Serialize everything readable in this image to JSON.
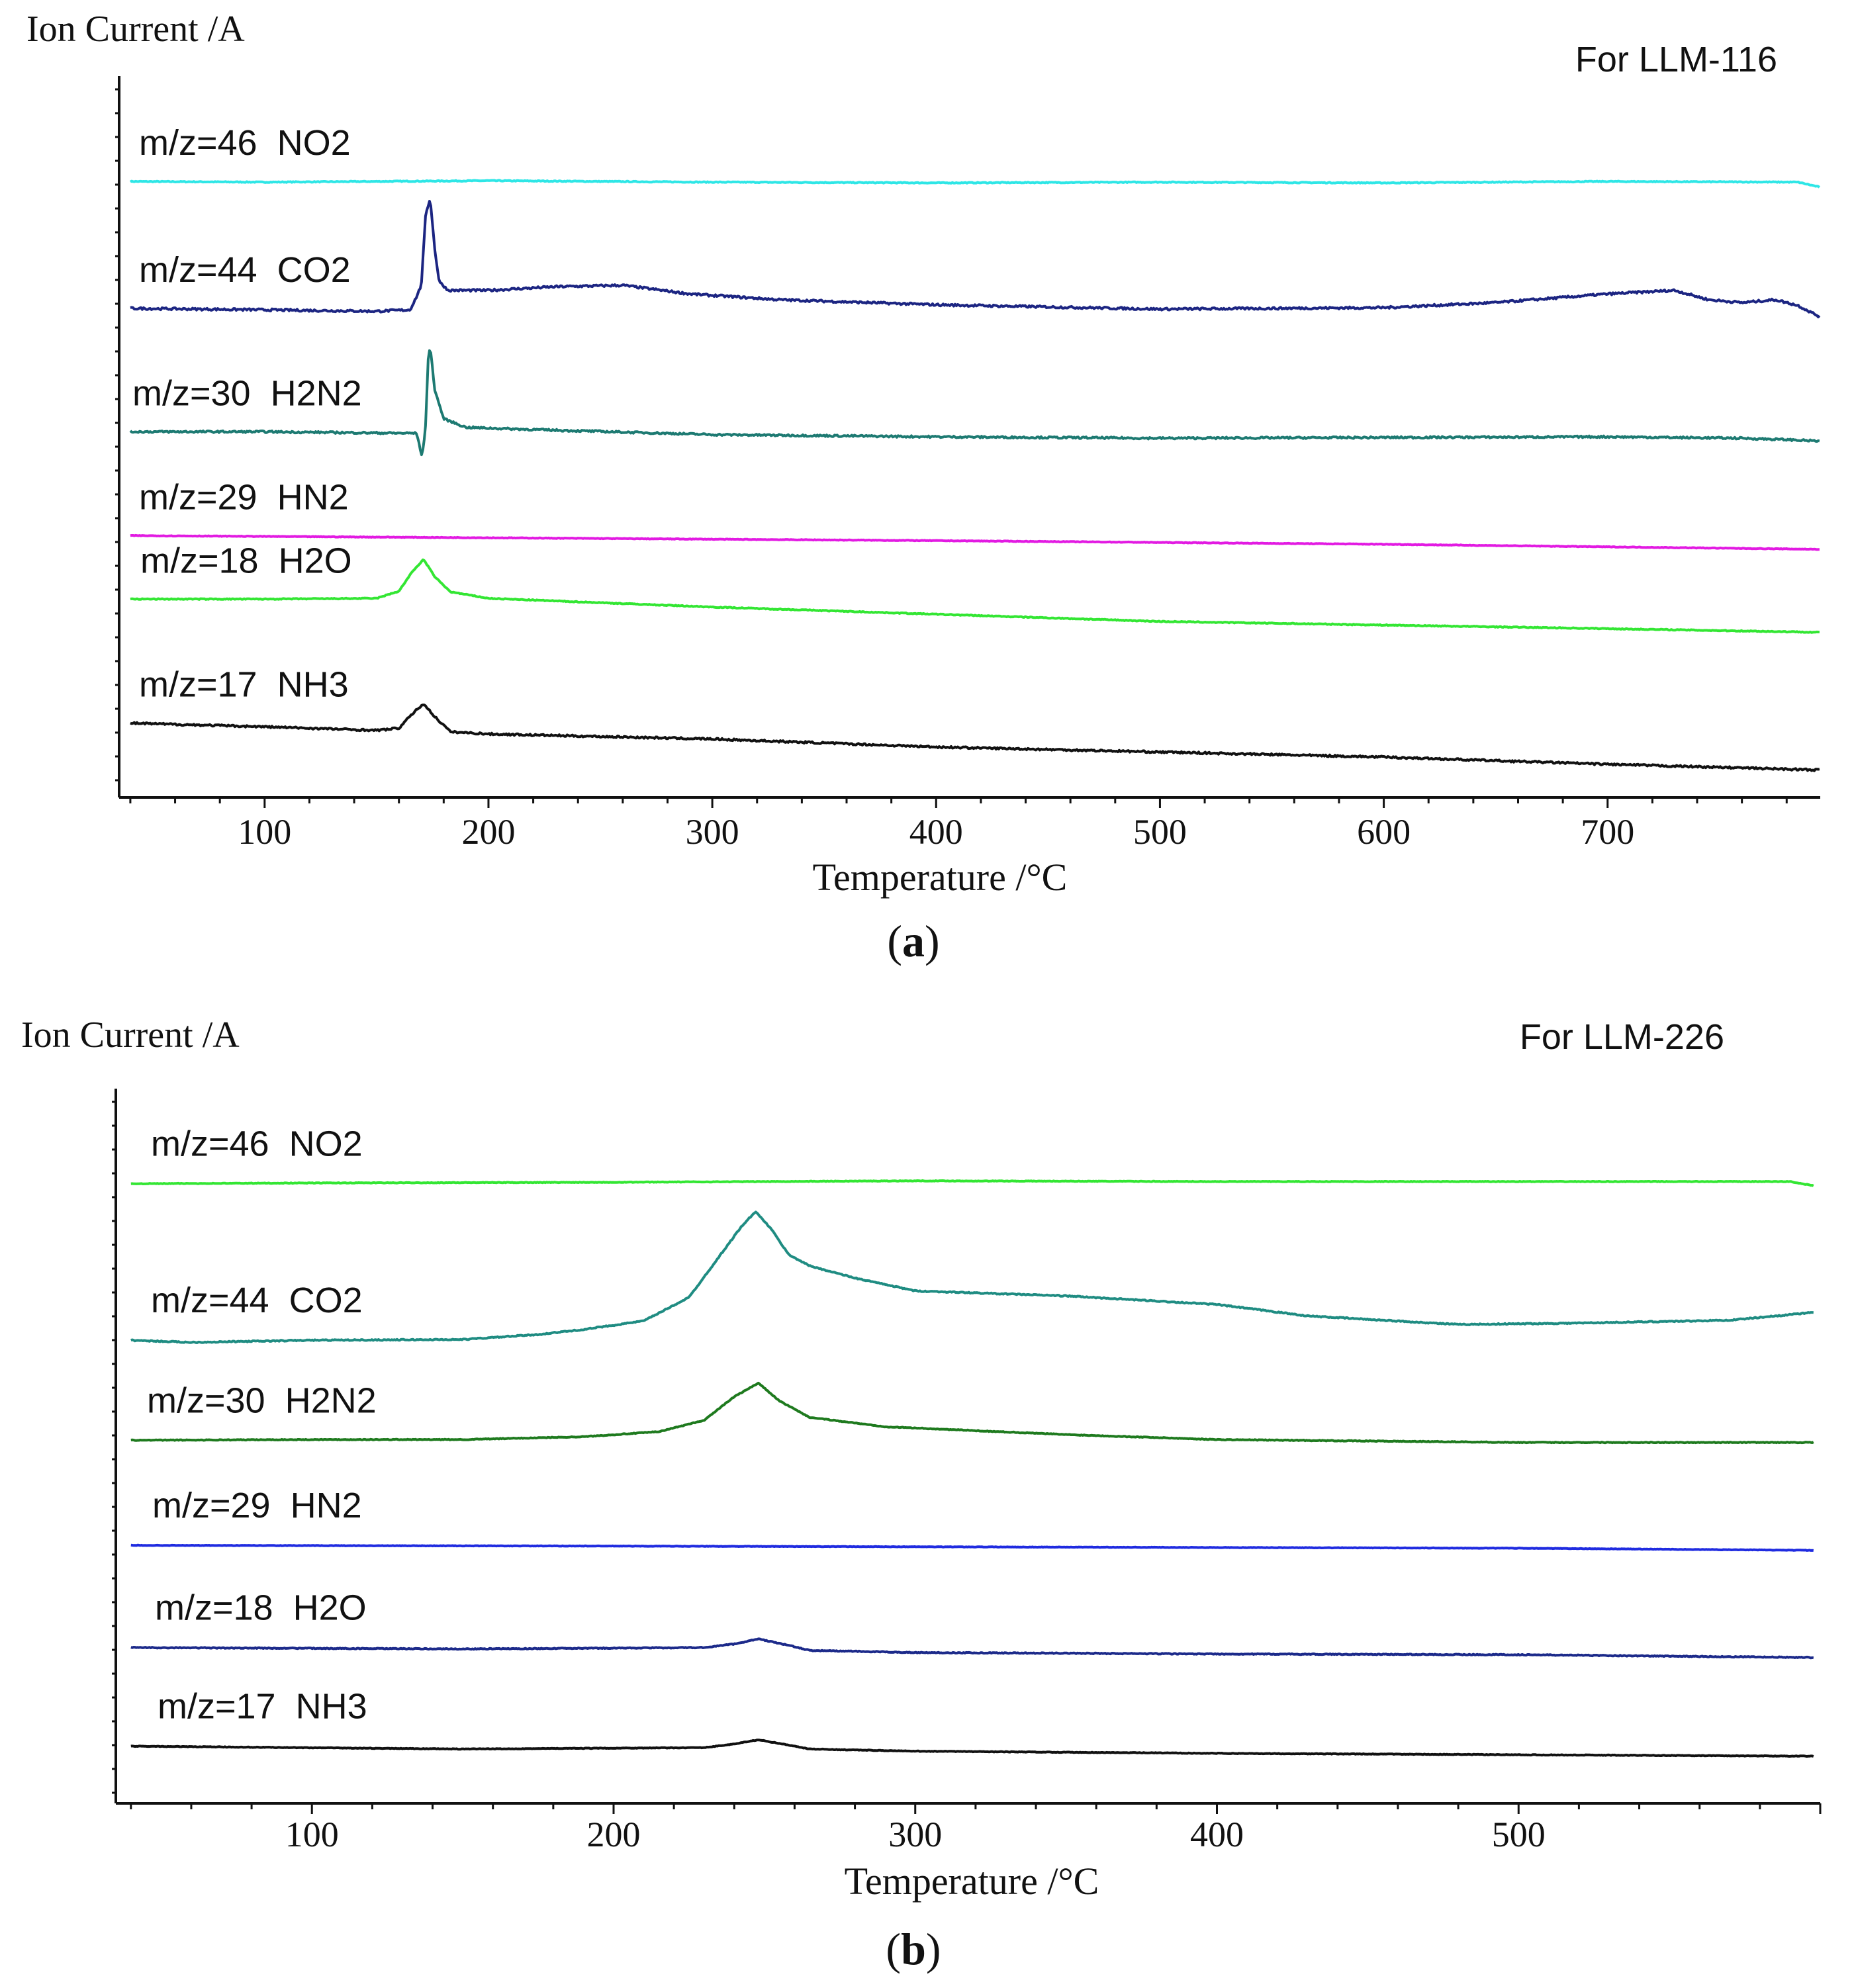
{
  "chart_data": [
    {
      "type": "line",
      "panel_label_open": "(",
      "panel_label": "a",
      "panel_label_close": ")",
      "ylabel": "Ion Current /A",
      "xlabel": "Temperature /°C",
      "title": "For LLM-116",
      "xlim": [
        35,
        795
      ],
      "ylim": [
        0,
        100
      ],
      "xticks": [
        100,
        200,
        300,
        400,
        500,
        600,
        700
      ],
      "series": [
        {
          "name": "m/z=46  NO2",
          "color": "#2ee6e6",
          "noise": 0.12,
          "points": [
            [
              40,
              85.4
            ],
            [
              100,
              85.3
            ],
            [
              200,
              85.5
            ],
            [
              300,
              85.3
            ],
            [
              400,
              85.2
            ],
            [
              500,
              85.3
            ],
            [
              600,
              85.2
            ],
            [
              700,
              85.4
            ],
            [
              785,
              85.3
            ],
            [
              795,
              84.6
            ]
          ]
        },
        {
          "name": "m/z=44  CO2",
          "color": "#1c2582",
          "noise": 0.3,
          "points": [
            [
              40,
              67.8
            ],
            [
              100,
              67.6
            ],
            [
              150,
              67.4
            ],
            [
              165,
              67.6
            ],
            [
              168,
              69.5
            ],
            [
              170,
              71.0
            ],
            [
              172,
              81.0
            ],
            [
              174,
              83.0
            ],
            [
              176,
              76.0
            ],
            [
              178,
              71.5
            ],
            [
              182,
              70.3
            ],
            [
              200,
              70.3
            ],
            [
              230,
              70.8
            ],
            [
              260,
              71.0
            ],
            [
              290,
              69.8
            ],
            [
              330,
              69.0
            ],
            [
              400,
              68.3
            ],
            [
              500,
              67.7
            ],
            [
              600,
              67.9
            ],
            [
              650,
              68.6
            ],
            [
              700,
              69.8
            ],
            [
              730,
              70.3
            ],
            [
              745,
              69.0
            ],
            [
              760,
              68.6
            ],
            [
              775,
              69.0
            ],
            [
              785,
              68.2
            ],
            [
              795,
              66.6
            ]
          ]
        },
        {
          "name": "m/z=30  H2N2",
          "color": "#1d7a72",
          "noise": 0.25,
          "points": [
            [
              40,
              50.7
            ],
            [
              100,
              50.7
            ],
            [
              160,
              50.5
            ],
            [
              168,
              50.5
            ],
            [
              170,
              47.5
            ],
            [
              171,
              48.5
            ],
            [
              172,
              52.0
            ],
            [
              173,
              60.5
            ],
            [
              174,
              62.5
            ],
            [
              176,
              56.5
            ],
            [
              180,
              52.5
            ],
            [
              190,
              51.3
            ],
            [
              220,
              51.0
            ],
            [
              300,
              50.3
            ],
            [
              400,
              50.0
            ],
            [
              500,
              49.8
            ],
            [
              600,
              49.9
            ],
            [
              700,
              50.0
            ],
            [
              760,
              49.8
            ],
            [
              780,
              49.6
            ],
            [
              795,
              49.4
            ]
          ]
        },
        {
          "name": "m/z=29  HN2",
          "color": "#e21ae2",
          "noise": 0.08,
          "points": [
            [
              40,
              36.3
            ],
            [
              200,
              36.0
            ],
            [
              400,
              35.6
            ],
            [
              600,
              35.1
            ],
            [
              795,
              34.4
            ]
          ]
        },
        {
          "name": "m/z=18  H2O",
          "color": "#33e633",
          "noise": 0.12,
          "points": [
            [
              40,
              27.5
            ],
            [
              100,
              27.5
            ],
            [
              150,
              27.6
            ],
            [
              160,
              28.6
            ],
            [
              166,
              31.3
            ],
            [
              171,
              33.0
            ],
            [
              176,
              30.6
            ],
            [
              183,
              28.5
            ],
            [
              200,
              27.6
            ],
            [
              300,
              26.4
            ],
            [
              400,
              25.4
            ],
            [
              500,
              24.4
            ],
            [
              600,
              23.9
            ],
            [
              700,
              23.4
            ],
            [
              795,
              22.9
            ]
          ]
        },
        {
          "name": "m/z=17  NH3",
          "color": "#111111",
          "noise": 0.25,
          "points": [
            [
              40,
              10.3
            ],
            [
              100,
              9.8
            ],
            [
              150,
              9.3
            ],
            [
              160,
              9.6
            ],
            [
              166,
              11.6
            ],
            [
              171,
              13.0
            ],
            [
              176,
              11.2
            ],
            [
              183,
              9.1
            ],
            [
              200,
              8.8
            ],
            [
              300,
              8.1
            ],
            [
              400,
              7.0
            ],
            [
              500,
              6.3
            ],
            [
              600,
              5.6
            ],
            [
              700,
              4.6
            ],
            [
              795,
              3.8
            ]
          ]
        }
      ]
    },
    {
      "type": "line",
      "panel_label_open": "(",
      "panel_label": "b",
      "panel_label_close": ")",
      "ylabel": "Ion Current /A",
      "xlabel": "Temperature /°C",
      "title": "For LLM-226",
      "xlim": [
        35,
        600
      ],
      "ylim": [
        0,
        100
      ],
      "xticks": [
        100,
        200,
        300,
        400,
        500
      ],
      "series": [
        {
          "name": "m/z=46  NO2",
          "color": "#33e633",
          "noise": 0.08,
          "points": [
            [
              40,
              86.7
            ],
            [
              100,
              86.8
            ],
            [
              200,
              86.9
            ],
            [
              300,
              87.1
            ],
            [
              400,
              87.0
            ],
            [
              500,
              87.0
            ],
            [
              590,
              87.0
            ],
            [
              598,
              86.4
            ]
          ]
        },
        {
          "name": "m/z=44  CO2",
          "color": "#1f8c82",
          "noise": 0.15,
          "points": [
            [
              40,
              64.8
            ],
            [
              60,
              64.5
            ],
            [
              100,
              64.8
            ],
            [
              150,
              64.9
            ],
            [
              175,
              65.6
            ],
            [
              190,
              66.3
            ],
            [
              210,
              67.5
            ],
            [
              225,
              70.8
            ],
            [
              235,
              76.5
            ],
            [
              242,
              80.5
            ],
            [
              247,
              82.8
            ],
            [
              252,
              80.5
            ],
            [
              258,
              76.8
            ],
            [
              265,
              75.2
            ],
            [
              280,
              73.5
            ],
            [
              300,
              71.7
            ],
            [
              350,
              71.0
            ],
            [
              400,
              69.8
            ],
            [
              430,
              68.2
            ],
            [
              480,
              67.0
            ],
            [
              520,
              67.2
            ],
            [
              570,
              67.6
            ],
            [
              598,
              68.7
            ]
          ]
        },
        {
          "name": "m/z=30  H2N2",
          "color": "#1e7a1e",
          "noise": 0.1,
          "points": [
            [
              40,
              50.8
            ],
            [
              100,
              50.9
            ],
            [
              150,
              50.9
            ],
            [
              190,
              51.3
            ],
            [
              215,
              52.0
            ],
            [
              230,
              53.6
            ],
            [
              240,
              56.9
            ],
            [
              248,
              58.8
            ],
            [
              255,
              56.3
            ],
            [
              265,
              54.0
            ],
            [
              290,
              52.7
            ],
            [
              350,
              51.6
            ],
            [
              400,
              50.9
            ],
            [
              500,
              50.5
            ],
            [
              598,
              50.5
            ]
          ]
        },
        {
          "name": "m/z=29  HN2",
          "color": "#1f2be0",
          "noise": 0.06,
          "points": [
            [
              40,
              36.1
            ],
            [
              200,
              36.0
            ],
            [
              400,
              35.8
            ],
            [
              500,
              35.7
            ],
            [
              598,
              35.4
            ]
          ]
        },
        {
          "name": "m/z=18  H2O",
          "color": "#1c2a8a",
          "noise": 0.12,
          "points": [
            [
              40,
              21.8
            ],
            [
              150,
              21.6
            ],
            [
              230,
              21.8
            ],
            [
              240,
              22.3
            ],
            [
              248,
              23.0
            ],
            [
              256,
              22.3
            ],
            [
              265,
              21.4
            ],
            [
              300,
              21.1
            ],
            [
              400,
              20.9
            ],
            [
              500,
              20.8
            ],
            [
              598,
              20.4
            ]
          ]
        },
        {
          "name": "m/z=17  NH3",
          "color": "#111111",
          "noise": 0.08,
          "points": [
            [
              40,
              8.0
            ],
            [
              150,
              7.6
            ],
            [
              230,
              7.8
            ],
            [
              240,
              8.3
            ],
            [
              248,
              8.9
            ],
            [
              256,
              8.3
            ],
            [
              265,
              7.6
            ],
            [
              300,
              7.3
            ],
            [
              400,
              7.0
            ],
            [
              500,
              6.8
            ],
            [
              598,
              6.6
            ]
          ]
        }
      ]
    }
  ]
}
